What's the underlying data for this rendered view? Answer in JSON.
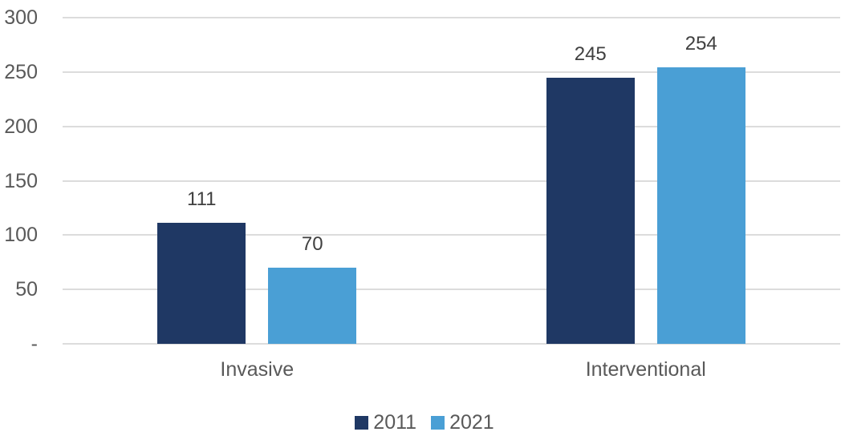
{
  "chart_data": {
    "type": "bar",
    "title": "",
    "xlabel": "",
    "ylabel": "",
    "categories": [
      "Invasive",
      "Interventional"
    ],
    "series": [
      {
        "name": "2011",
        "color": "#1F3864",
        "values": [
          111,
          245
        ]
      },
      {
        "name": "2021",
        "color": "#4A9FD5",
        "values": [
          70,
          254
        ]
      }
    ],
    "data_labels": {
      "shown": true,
      "values": [
        [
          "111",
          "245"
        ],
        [
          "70",
          "254"
        ]
      ]
    },
    "ylim": [
      0,
      300
    ],
    "y_ticks": [
      {
        "value": 300,
        "label": "300"
      },
      {
        "value": 250,
        "label": "250"
      },
      {
        "value": 200,
        "label": "200"
      },
      {
        "value": 150,
        "label": "150"
      },
      {
        "value": 100,
        "label": "100"
      },
      {
        "value": 50,
        "label": "50"
      },
      {
        "value": 0,
        "label": "-"
      }
    ],
    "grid": true,
    "legend": {
      "position": "bottom",
      "entries": [
        "2011",
        "2021"
      ]
    },
    "colors": {
      "background": "#FFFFFF",
      "gridline": "#DCDCDC",
      "axis_label": "#595959",
      "data_label": "#404040",
      "category_label": "#595959",
      "legend_label": "#595959",
      "series_2011": "#1F3864",
      "series_2021": "#4A9FD5"
    }
  }
}
